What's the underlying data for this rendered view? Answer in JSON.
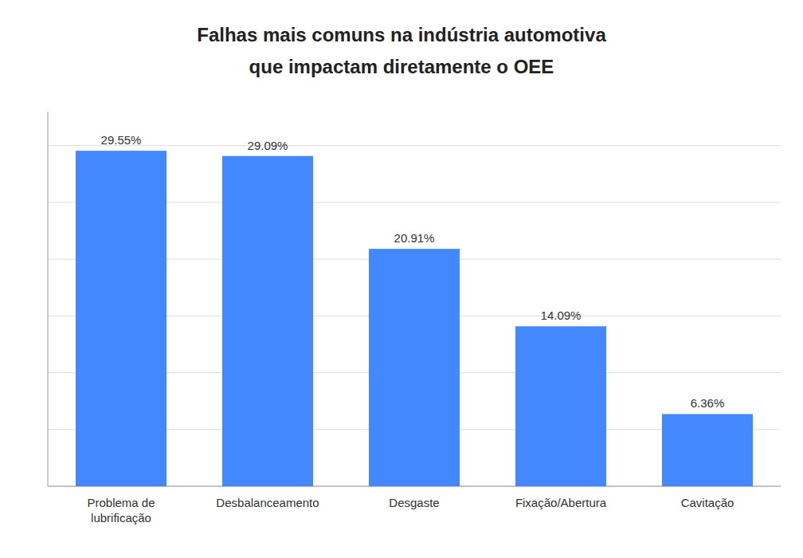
{
  "chart_data": {
    "type": "bar",
    "title": "Falhas mais comuns na indústria automotiva",
    "subtitle": "que impactam diretamente o OEE",
    "categories": [
      "Problema de\nlubrificação",
      "Desbalanceamento",
      "Desgaste",
      "Fixação/Abertura",
      "Cavitação"
    ],
    "values": [
      29.55,
      29.09,
      20.91,
      14.09,
      6.36
    ],
    "value_labels": [
      "29.55%",
      "29.09%",
      "20.91%",
      "14.09%",
      "6.36%"
    ],
    "data_labels": true,
    "color": "#4488FF",
    "ylim": [
      0,
      33
    ],
    "yticks": [
      0,
      5,
      10,
      15,
      20,
      25,
      30
    ],
    "grid": true,
    "tick_labels": "x"
  }
}
